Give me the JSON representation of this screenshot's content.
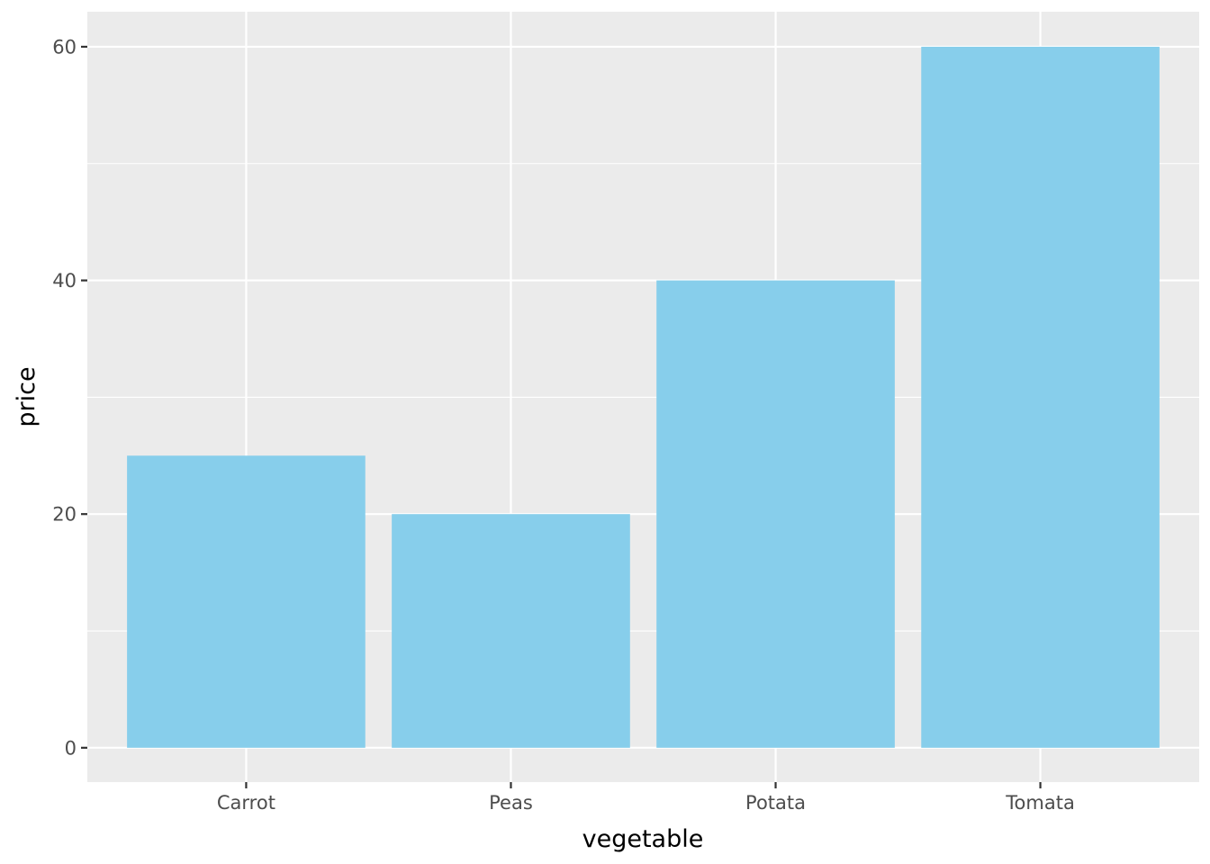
{
  "chart_data": {
    "type": "bar",
    "categories": [
      "Carrot",
      "Peas",
      "Potata",
      "Tomata"
    ],
    "values": [
      25,
      20,
      40,
      60
    ],
    "xlabel": "vegetable",
    "ylabel": "price",
    "ylim": [
      -2.94,
      63
    ],
    "y_major_ticks": [
      0,
      20,
      40,
      60
    ],
    "y_minor_ticks": [
      10,
      30,
      50
    ],
    "grid": true,
    "legend": "none",
    "colors": {
      "bar": "#87CEEB",
      "panel": "#EBEBEB",
      "grid": "#FFFFFF",
      "tick_text": "#4D4D4D",
      "tick_mark": "#333333"
    }
  }
}
